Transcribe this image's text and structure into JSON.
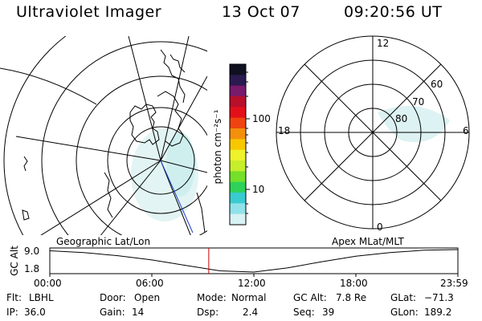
{
  "header": {
    "instrument": "Ultraviolet Imager",
    "date": "13 Oct 07",
    "time": "09:20:56 UT"
  },
  "panels": {
    "left_label": "Geographic Lat/Lon",
    "right_label": "Apex MLat/MLT"
  },
  "polar_grid": {
    "mlt_labels": [
      "12",
      "18",
      "6",
      "0"
    ],
    "mlat_labels": [
      "60",
      "70",
      "80"
    ]
  },
  "colorbar": {
    "unit_label": "photon cm⁻²s⁻¹",
    "tick_labels": [
      "100",
      "10"
    ],
    "colors": [
      "#101020",
      "#2a1a50",
      "#7a1a6a",
      "#b80f2a",
      "#e3101a",
      "#f04410",
      "#f4900c",
      "#f7c800",
      "#eef22a",
      "#c6ee2a",
      "#74e02a",
      "#2ed25a",
      "#3acbd0",
      "#8fe2ea",
      "#d8f2f4"
    ]
  },
  "timeline": {
    "y_axis_label": "GC Alt",
    "y_ticks": [
      "9.0",
      "1.8"
    ],
    "x_ticks": [
      "00:00",
      "06:00",
      "12:00",
      "18:00",
      "23:59"
    ],
    "marker_time_fraction": 0.3895,
    "altitude_curve": [
      8.6,
      8.0,
      7.0,
      5.6,
      3.8,
      2.0,
      1.6,
      3.0,
      5.0,
      6.8,
      8.0,
      8.8,
      9.0
    ],
    "marker_color": "#cc0000"
  },
  "status": {
    "row1": [
      {
        "label": "Flt:",
        "value": "LBHL"
      },
      {
        "label": "Door:",
        "value": "Open"
      },
      {
        "label": "Mode:",
        "value": "Normal"
      },
      {
        "label": "GC Alt:",
        "value": "7.8 Re"
      },
      {
        "label": "GLat:",
        "value": "−71.3"
      }
    ],
    "row2": [
      {
        "label": "IP:",
        "value": "36.0"
      },
      {
        "label": "Gain:",
        "value": "14"
      },
      {
        "label": "Dsp:",
        "value": "2.4"
      },
      {
        "label": "Seq:",
        "value": "39"
      },
      {
        "label": "GLon:",
        "value": "189.2"
      }
    ]
  }
}
